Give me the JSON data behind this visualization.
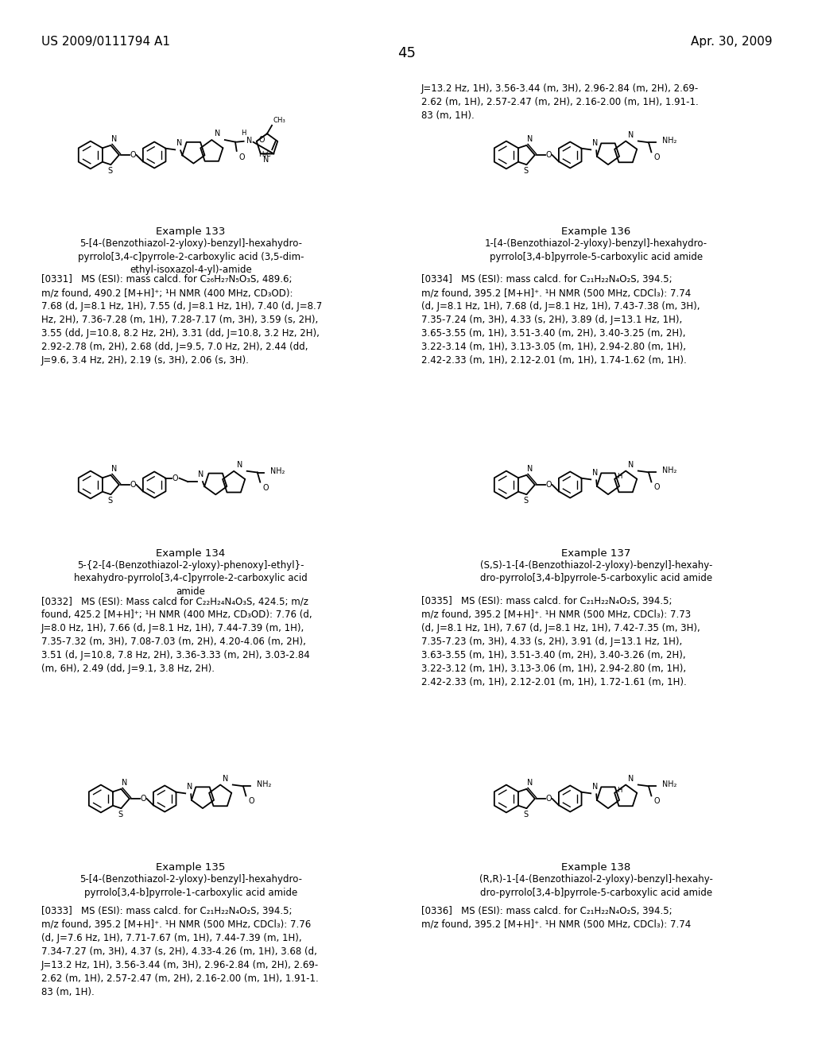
{
  "header_left": "US 2009/0111794 A1",
  "header_right": "Apr. 30, 2009",
  "page_num": "45",
  "bg": "#ffffff",
  "tc": "#000000",
  "examples": [
    {
      "id": "133",
      "col": 0,
      "row": 0,
      "label": "Example 133",
      "title": "5-[4-(Benzothiazol-2-yloxy)-benzyl]-hexahydro-\npyrrolo[3,4-c]pyrrole-2-carboxylic acid (3,5-dim-\nethyl-isoxazol-4-yl)-amide",
      "ref": "[0331]",
      "body": "MS (ESI): mass calcd. for C₂₆H₂₇N₅O₃S, 489.6;\nm/z found, 490.2 [M+H]⁺; ¹H NMR (400 MHz, CD₃OD):\n7.68 (d, J=8.1 Hz, 1H), 7.55 (d, J=8.1 Hz, 1H), 7.40 (d, J=8.7\nHz, 2H), 7.36-7.28 (m, 1H), 7.28-7.17 (m, 3H), 3.59 (s, 2H),\n3.55 (dd, J=10.8, 8.2 Hz, 2H), 3.31 (dd, J=10.8, 3.2 Hz, 2H),\n2.92-2.78 (m, 2H), 2.68 (dd, J=9.5, 7.0 Hz, 2H), 2.44 (dd,\nJ=9.6, 3.4 Hz, 2H), 2.19 (s, 3H), 2.06 (s, 3H)."
    },
    {
      "id": "134",
      "col": 0,
      "row": 1,
      "label": "Example 134",
      "title": "5-{2-[4-(Benzothiazol-2-yloxy)-phenoxy]-ethyl}-\nhexahydro-pyrrolo[3,4-c]pyrrole-2-carboxylic acid\namide",
      "ref": "[0332]",
      "body": "MS (ESI): Mass calcd for C₂₂H₂₄N₄O₃S, 424.5; m/z\nfound, 425.2 [M+H]⁺; ¹H NMR (400 MHz, CD₃OD): 7.76 (d,\nJ=8.0 Hz, 1H), 7.66 (d, J=8.1 Hz, 1H), 7.44-7.39 (m, 1H),\n7.35-7.32 (m, 3H), 7.08-7.03 (m, 2H), 4.20-4.06 (m, 2H),\n3.51 (d, J=10.8, 7.8 Hz, 2H), 3.36-3.33 (m, 2H), 3.03-2.84\n(m, 6H), 2.49 (dd, J=9.1, 3.8 Hz, 2H)."
    },
    {
      "id": "135",
      "col": 0,
      "row": 2,
      "label": "Example 135",
      "title": "5-[4-(Benzothiazol-2-yloxy)-benzyl]-hexahydro-\npyrrolo[3,4-b]pyrrole-1-carboxylic acid amide",
      "ref": "[0333]",
      "body": "MS (ESI): mass calcd. for C₂₁H₂₂N₄O₂S, 394.5;\nm/z found, 395.2 [M+H]⁺. ¹H NMR (500 MHz, CDCl₃): 7.76\n(d, J=7.6 Hz, 1H), 7.71-7.67 (m, 1H), 7.44-7.39 (m, 1H),\n7.34-7.27 (m, 3H), 4.37 (s, 2H), 4.33-4.26 (m, 1H), 3.68 (d,\nJ=13.2 Hz, 1H), 3.56-3.44 (m, 3H), 2.96-2.84 (m, 2H), 2.69-\n2.62 (m, 1H), 2.57-2.47 (m, 2H), 2.16-2.00 (m, 1H), 1.91-1.\n83 (m, 1H)."
    },
    {
      "id": "136",
      "col": 1,
      "row": 0,
      "label": "Example 136",
      "title": "1-[4-(Benzothiazol-2-yloxy)-benzyl]-hexahydro-\npyrrolo[3,4-b]pyrrole-5-carboxylic acid amide",
      "ref": "[0334]",
      "body": "MS (ESI): mass calcd. for C₂₁H₂₂N₄O₂S, 394.5;\nm/z found, 395.2 [M+H]⁺. ¹H NMR (500 MHz, CDCl₃): 7.74\n(d, J=8.1 Hz, 1H), 7.68 (d, J=8.1 Hz, 1H), 7.43-7.38 (m, 3H),\n7.35-7.24 (m, 3H), 4.33 (s, 2H), 3.89 (d, J=13.1 Hz, 1H),\n3.65-3.55 (m, 1H), 3.51-3.40 (m, 2H), 3.40-3.25 (m, 2H),\n3.22-3.14 (m, 1H), 3.13-3.05 (m, 1H), 2.94-2.80 (m, 1H),\n2.42-2.33 (m, 1H), 2.12-2.01 (m, 1H), 1.74-1.62 (m, 1H)."
    },
    {
      "id": "137",
      "col": 1,
      "row": 1,
      "label": "Example 137",
      "title": "(S,S)-1-[4-(Benzothiazol-2-yloxy)-benzyl]-hexahy-\ndro-pyrrolo[3,4-b]pyrrole-5-carboxylic acid amide",
      "ref": "[0335]",
      "body": "MS (ESI): mass calcd. for C₂₁H₂₂N₄O₂S, 394.5;\nm/z found, 395.2 [M+H]⁺. ¹H NMR (500 MHz, CDCl₃): 7.73\n(d, J=8.1 Hz, 1H), 7.67 (d, J=8.1 Hz, 1H), 7.42-7.35 (m, 3H),\n7.35-7.23 (m, 3H), 4.33 (s, 2H), 3.91 (d, J=13.1 Hz, 1H),\n3.63-3.55 (m, 1H), 3.51-3.40 (m, 2H), 3.40-3.26 (m, 2H),\n3.22-3.12 (m, 1H), 3.13-3.06 (m, 1H), 2.94-2.80 (m, 1H),\n2.42-2.33 (m, 1H), 2.12-2.01 (m, 1H), 1.72-1.61 (m, 1H)."
    },
    {
      "id": "138",
      "col": 1,
      "row": 2,
      "label": "Example 138",
      "title": "(R,R)-1-[4-(Benzothiazol-2-yloxy)-benzyl]-hexahy-\ndro-pyrrolo[3,4-b]pyrrole-5-carboxylic acid amide",
      "ref": "[0336]",
      "body": "MS (ESI): mass calcd. for C₂₁H₂₂N₄O₂S, 394.5;\nm/z found, 395.2 [M+H]⁺. ¹H NMR (500 MHz, CDCl₃): 7.74"
    }
  ]
}
